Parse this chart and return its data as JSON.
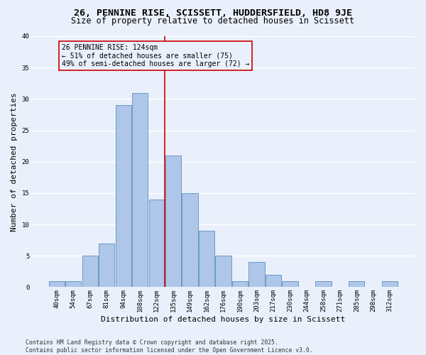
{
  "title_line1": "26, PENNINE RISE, SCISSETT, HUDDERSFIELD, HD8 9JE",
  "title_line2": "Size of property relative to detached houses in Scissett",
  "xlabel": "Distribution of detached houses by size in Scissett",
  "ylabel": "Number of detached properties",
  "footer_line1": "Contains HM Land Registry data © Crown copyright and database right 2025.",
  "footer_line2": "Contains public sector information licensed under the Open Government Licence v3.0.",
  "bar_labels": [
    "40sqm",
    "54sqm",
    "67sqm",
    "81sqm",
    "94sqm",
    "108sqm",
    "122sqm",
    "135sqm",
    "149sqm",
    "162sqm",
    "176sqm",
    "190sqm",
    "203sqm",
    "217sqm",
    "230sqm",
    "244sqm",
    "258sqm",
    "271sqm",
    "285sqm",
    "298sqm",
    "312sqm"
  ],
  "bar_values": [
    1,
    1,
    5,
    7,
    29,
    31,
    14,
    21,
    15,
    9,
    5,
    1,
    4,
    2,
    1,
    0,
    1,
    0,
    1,
    0,
    1
  ],
  "bar_color": "#aec6e8",
  "bar_edge_color": "#5a8fc2",
  "background_color": "#eaf0fb",
  "grid_color": "#ffffff",
  "annotation_text": "26 PENNINE RISE: 124sqm\n← 51% of detached houses are smaller (75)\n49% of semi-detached houses are larger (72) →",
  "annotation_box_edge_color": "#cc0000",
  "vline_x": 6.5,
  "vline_color": "#cc0000",
  "ylim": [
    0,
    40
  ],
  "yticks": [
    0,
    5,
    10,
    15,
    20,
    25,
    30,
    35,
    40
  ],
  "title_fontsize": 9.5,
  "subtitle_fontsize": 8.5,
  "axis_label_fontsize": 8,
  "tick_fontsize": 6.5,
  "annotation_fontsize": 7,
  "footer_fontsize": 5.8
}
